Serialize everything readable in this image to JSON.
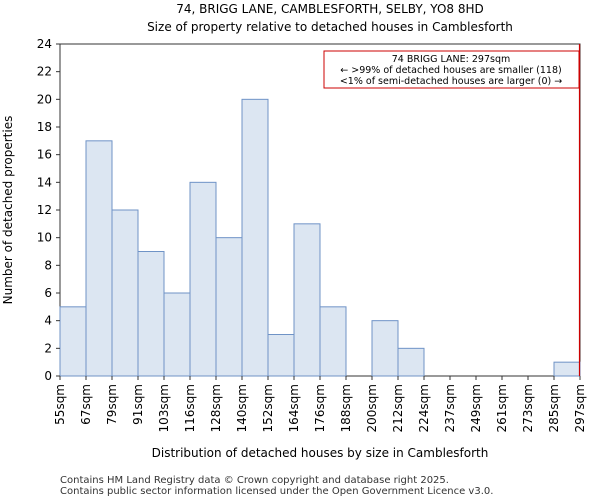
{
  "chart_data": {
    "type": "bar",
    "title": "74, BRIGG LANE, CAMBLESFORTH, SELBY, YO8 8HD",
    "subtitle": "Size of property relative to detached houses in Camblesforth",
    "xlabel": "Distribution of detached houses by size in Camblesforth",
    "ylabel": "Number of detached properties",
    "ylim": [
      0,
      24
    ],
    "yticks": [
      0,
      2,
      4,
      6,
      8,
      10,
      12,
      14,
      16,
      18,
      20,
      22,
      24
    ],
    "bin_edges": [
      "55sqm",
      "67sqm",
      "79sqm",
      "91sqm",
      "103sqm",
      "116sqm",
      "128sqm",
      "140sqm",
      "152sqm",
      "164sqm",
      "176sqm",
      "188sqm",
      "200sqm",
      "212sqm",
      "224sqm",
      "237sqm",
      "249sqm",
      "261sqm",
      "273sqm",
      "285sqm",
      "297sqm"
    ],
    "values": [
      5,
      17,
      12,
      9,
      6,
      14,
      10,
      20,
      3,
      11,
      5,
      0,
      4,
      2,
      0,
      0,
      0,
      0,
      0,
      1
    ],
    "bar_color": "#dce6f2",
    "bar_edge_color": "#6f93c6",
    "marker": {
      "position_bin_index": 20,
      "color": "#cc0000"
    },
    "annotation": {
      "line1": "74 BRIGG LANE: 297sqm",
      "line2": "← >99% of detached houses are smaller (118)",
      "line3": "<1% of semi-detached houses are larger (0) →",
      "placement": "top-right"
    },
    "grid": false
  },
  "footer": {
    "line1": "Contains HM Land Registry data © Crown copyright and database right 2025.",
    "line2": "Contains public sector information licensed under the Open Government Licence v3.0."
  }
}
